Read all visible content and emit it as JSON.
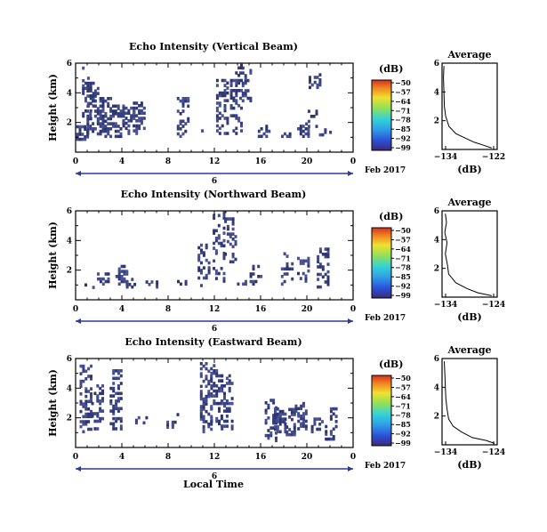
{
  "chart_data": [
    {
      "type": "heatmap",
      "title": "Echo Intensity (Vertical Beam)",
      "xlabel": "",
      "ylabel": "Height (km)",
      "xlim": [
        0,
        24
      ],
      "ylim": [
        0,
        6
      ],
      "xticks": [
        "0",
        "4",
        "8",
        "12",
        "16",
        "20",
        "0"
      ],
      "yticks": [
        "2",
        "4",
        "6"
      ],
      "date_label": "6",
      "date_suffix": "Feb 2017",
      "colorbar": {
        "unit": "(dB)",
        "ticks": [
          "-50",
          "-57",
          "-64",
          "-71",
          "-78",
          "-85",
          "-92",
          "-99"
        ]
      },
      "average": {
        "title": "Average",
        "xlabel": "(dB)",
        "xticks": [
          "-134",
          "-122"
        ],
        "yticks": [
          "2",
          "4",
          "6"
        ],
        "xlim": [
          -134,
          -122
        ],
        "ylim": [
          0,
          6
        ],
        "x": [
          -133.6,
          -133.7,
          -133.6,
          -133.5,
          -133.2,
          -132.5,
          -131.0,
          -129.0,
          -127.0,
          -125.0,
          -123.2
        ],
        "y": [
          5.8,
          5.0,
          4.0,
          3.0,
          2.3,
          1.6,
          1.1,
          0.8,
          0.5,
          0.3,
          0.1
        ]
      }
    },
    {
      "type": "heatmap",
      "title": "Echo Intensity (Northward Beam)",
      "xlabel": "",
      "ylabel": "Height (km)",
      "xlim": [
        0,
        24
      ],
      "ylim": [
        0,
        6
      ],
      "xticks": [
        "0",
        "4",
        "8",
        "12",
        "16",
        "20",
        "0"
      ],
      "yticks": [
        "2",
        "4",
        "6"
      ],
      "date_label": "6",
      "date_suffix": "Feb 2017",
      "colorbar": {
        "unit": "(dB)",
        "ticks": [
          "-50",
          "-57",
          "-64",
          "-71",
          "-78",
          "-85",
          "-92",
          "-99"
        ]
      },
      "average": {
        "title": "Average",
        "xlabel": "(dB)",
        "xticks": [
          "-134",
          "-124"
        ],
        "yticks": [
          "2",
          "4",
          "6"
        ],
        "xlim": [
          -134,
          -124
        ],
        "ylim": [
          0,
          6
        ],
        "x": [
          -133.4,
          -133.2,
          -133.5,
          -133.1,
          -133.4,
          -133.0,
          -132.8,
          -131.5,
          -129.5,
          -127.5,
          -125.0
        ],
        "y": [
          5.8,
          5.2,
          4.5,
          3.8,
          3.0,
          2.2,
          1.6,
          1.0,
          0.6,
          0.3,
          0.1
        ]
      }
    },
    {
      "type": "heatmap",
      "title": "Echo Intensity (Eastward Beam)",
      "xlabel": "Local Time",
      "ylabel": "Height (km)",
      "xlim": [
        0,
        24
      ],
      "ylim": [
        0,
        6
      ],
      "xticks": [
        "0",
        "4",
        "8",
        "12",
        "16",
        "20",
        "0"
      ],
      "yticks": [
        "2",
        "4",
        "6"
      ],
      "date_label": "6",
      "date_suffix": "Feb 2017",
      "colorbar": {
        "unit": "(dB)",
        "ticks": [
          "-50",
          "-57",
          "-64",
          "-71",
          "-78",
          "-85",
          "-92",
          "-99"
        ]
      },
      "average": {
        "title": "Average",
        "xlabel": "(dB)",
        "xticks": [
          "-134",
          "-124"
        ],
        "yticks": [
          "2",
          "4",
          "6"
        ],
        "xlim": [
          -134,
          -124
        ],
        "ylim": [
          0,
          6
        ],
        "x": [
          -133.6,
          -133.5,
          -133.4,
          -133.3,
          -133.1,
          -132.8,
          -132.0,
          -130.5,
          -128.5,
          -126.0,
          -124.5
        ],
        "y": [
          5.8,
          5.0,
          4.0,
          3.2,
          2.5,
          1.8,
          1.3,
          0.9,
          0.5,
          0.3,
          0.1
        ]
      }
    }
  ]
}
